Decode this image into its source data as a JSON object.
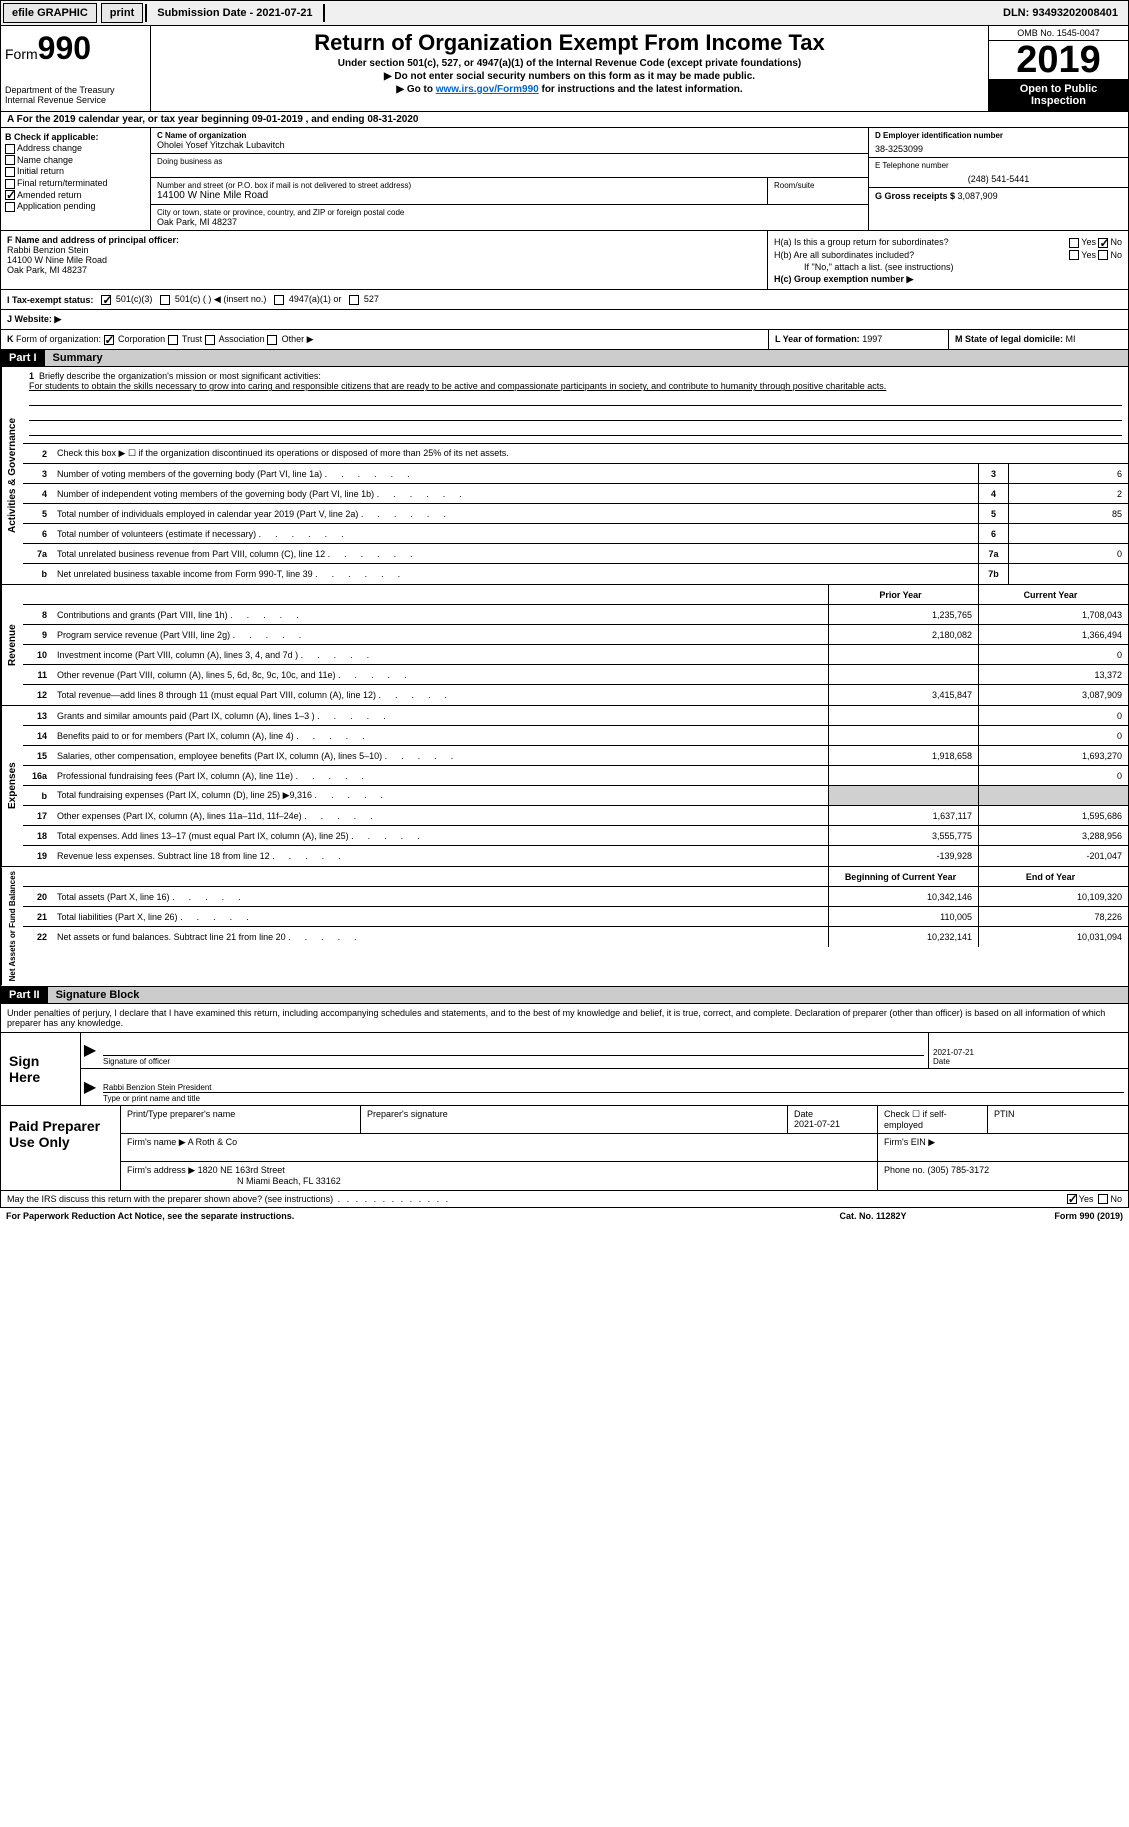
{
  "top_bar": {
    "efile": "efile GRAPHIC",
    "print": "print",
    "submission_label": "Submission Date - ",
    "submission_date": "2021-07-21",
    "dln_label": "DLN: ",
    "dln": "93493202008401"
  },
  "header": {
    "form_prefix": "Form",
    "form_num": "990",
    "dept": "Department of the Treasury\nInternal Revenue Service",
    "title": "Return of Organization Exempt From Income Tax",
    "sub1": "Under section 501(c), 527, or 4947(a)(1) of the Internal Revenue Code (except private foundations)",
    "sub2": "▶ Do not enter social security numbers on this form as it may be made public.",
    "sub3_pre": "▶ Go to ",
    "sub3_link": "www.irs.gov/Form990",
    "sub3_post": " for instructions and the latest information.",
    "omb": "OMB No. 1545-0047",
    "year": "2019",
    "open": "Open to Public Inspection"
  },
  "line_a": "A For the 2019 calendar year, or tax year beginning 09-01-2019   , and ending 08-31-2020",
  "box_b": {
    "label": "B Check if applicable:",
    "opts": [
      "Address change",
      "Name change",
      "Initial return",
      "Final return/terminated",
      "Amended return",
      "Application pending"
    ],
    "checked_idx": 4
  },
  "box_c": {
    "name_label": "C Name of organization",
    "name": "Oholei Yosef Yitzchak Lubavitch",
    "dba_label": "Doing business as",
    "street_label": "Number and street (or P.O. box if mail is not delivered to street address)",
    "room_label": "Room/suite",
    "street": "14100 W Nine Mile Road",
    "city_label": "City or town, state or province, country, and ZIP or foreign postal code",
    "city": "Oak Park, MI  48237"
  },
  "box_d": {
    "label": "D Employer identification number",
    "value": "38-3253099"
  },
  "box_e": {
    "label": "E Telephone number",
    "value": "(248) 541-5441"
  },
  "box_g": {
    "label": "G Gross receipts $ ",
    "value": "3,087,909"
  },
  "box_f": {
    "label": "F  Name and address of principal officer:",
    "name": "Rabbi Benzion Stein",
    "street": "14100 W Nine Mile Road",
    "city": "Oak Park, MI  48237"
  },
  "box_h": {
    "ha": "H(a)  Is this a group return for subordinates?",
    "hb": "H(b)  Are all subordinates included?",
    "hb_note": "If \"No,\" attach a list. (see instructions)",
    "hc": "H(c)  Group exemption number ▶",
    "yes": "Yes",
    "no": "No"
  },
  "exempt": {
    "label": "I  Tax-exempt status:",
    "o1": "501(c)(3)",
    "o2": "501(c) (  ) ◀ (insert no.)",
    "o3": "4947(a)(1) or",
    "o4": "527"
  },
  "website": "J  Website: ▶",
  "box_k": "K Form of organization:   Corporation   Trust   Association   Other ▶",
  "box_l": {
    "label": "L Year of formation: ",
    "value": "1997"
  },
  "box_m": {
    "label": "M State of legal domicile: ",
    "value": "MI"
  },
  "part1": {
    "hdr": "Part I",
    "title": "Summary"
  },
  "mission": {
    "num": "1",
    "label": "Briefly describe the organization's mission or most significant activities:",
    "text": "For students to obtain the skills necessary to grow into caring and responsible citizens that are ready to be active and compassionate participants in society, and contribute to humanity through positive charitable acts."
  },
  "gov_lines": [
    {
      "num": "2",
      "txt": "Check this box ▶ ☐  if the organization discontinued its operations or disposed of more than 25% of its net assets.",
      "box": "",
      "val": ""
    },
    {
      "num": "3",
      "txt": "Number of voting members of the governing body (Part VI, line 1a)",
      "box": "3",
      "val": "6"
    },
    {
      "num": "4",
      "txt": "Number of independent voting members of the governing body (Part VI, line 1b)",
      "box": "4",
      "val": "2"
    },
    {
      "num": "5",
      "txt": "Total number of individuals employed in calendar year 2019 (Part V, line 2a)",
      "box": "5",
      "val": "85"
    },
    {
      "num": "6",
      "txt": "Total number of volunteers (estimate if necessary)",
      "box": "6",
      "val": ""
    },
    {
      "num": "7a",
      "txt": "Total unrelated business revenue from Part VIII, column (C), line 12",
      "box": "7a",
      "val": "0"
    },
    {
      "num": "b",
      "txt": "Net unrelated business taxable income from Form 990-T, line 39",
      "box": "7b",
      "val": ""
    }
  ],
  "rev_hdr": {
    "prior": "Prior Year",
    "curr": "Current Year"
  },
  "rev_lines": [
    {
      "num": "8",
      "txt": "Contributions and grants (Part VIII, line 1h)",
      "prior": "1,235,765",
      "curr": "1,708,043"
    },
    {
      "num": "9",
      "txt": "Program service revenue (Part VIII, line 2g)",
      "prior": "2,180,082",
      "curr": "1,366,494"
    },
    {
      "num": "10",
      "txt": "Investment income (Part VIII, column (A), lines 3, 4, and 7d )",
      "prior": "",
      "curr": "0"
    },
    {
      "num": "11",
      "txt": "Other revenue (Part VIII, column (A), lines 5, 6d, 8c, 9c, 10c, and 11e)",
      "prior": "",
      "curr": "13,372"
    },
    {
      "num": "12",
      "txt": "Total revenue—add lines 8 through 11 (must equal Part VIII, column (A), line 12)",
      "prior": "3,415,847",
      "curr": "3,087,909"
    }
  ],
  "exp_lines": [
    {
      "num": "13",
      "txt": "Grants and similar amounts paid (Part IX, column (A), lines 1–3 )",
      "prior": "",
      "curr": "0"
    },
    {
      "num": "14",
      "txt": "Benefits paid to or for members (Part IX, column (A), line 4)",
      "prior": "",
      "curr": "0"
    },
    {
      "num": "15",
      "txt": "Salaries, other compensation, employee benefits (Part IX, column (A), lines 5–10)",
      "prior": "1,918,658",
      "curr": "1,693,270"
    },
    {
      "num": "16a",
      "txt": "Professional fundraising fees (Part IX, column (A), line 11e)",
      "prior": "",
      "curr": "0"
    },
    {
      "num": "b",
      "txt": "Total fundraising expenses (Part IX, column (D), line 25) ▶9,316",
      "prior": "SHADED",
      "curr": "SHADED"
    },
    {
      "num": "17",
      "txt": "Other expenses (Part IX, column (A), lines 11a–11d, 11f–24e)",
      "prior": "1,637,117",
      "curr": "1,595,686"
    },
    {
      "num": "18",
      "txt": "Total expenses. Add lines 13–17 (must equal Part IX, column (A), line 25)",
      "prior": "3,555,775",
      "curr": "3,288,956"
    },
    {
      "num": "19",
      "txt": "Revenue less expenses. Subtract line 18 from line 12",
      "prior": "-139,928",
      "curr": "-201,047"
    }
  ],
  "na_hdr": {
    "prior": "Beginning of Current Year",
    "curr": "End of Year"
  },
  "na_lines": [
    {
      "num": "20",
      "txt": "Total assets (Part X, line 16)",
      "prior": "10,342,146",
      "curr": "10,109,320"
    },
    {
      "num": "21",
      "txt": "Total liabilities (Part X, line 26)",
      "prior": "110,005",
      "curr": "78,226"
    },
    {
      "num": "22",
      "txt": "Net assets or fund balances. Subtract line 21 from line 20",
      "prior": "10,232,141",
      "curr": "10,031,094"
    }
  ],
  "vert": {
    "gov": "Activities & Governance",
    "rev": "Revenue",
    "exp": "Expenses",
    "na": "Net Assets or Fund Balances"
  },
  "part2": {
    "hdr": "Part II",
    "title": "Signature Block"
  },
  "penalty": "Under penalties of perjury, I declare that I have examined this return, including accompanying schedules and statements, and to the best of my knowledge and belief, it is true, correct, and complete. Declaration of preparer (other than officer) is based on all information of which preparer has any knowledge.",
  "sign": {
    "label": "Sign Here",
    "sig_label": "Signature of officer",
    "date_label": "Date",
    "date": "2021-07-21",
    "name": "Rabbi Benzion Stein  President",
    "name_label": "Type or print name and title"
  },
  "prep": {
    "label": "Paid Preparer Use Only",
    "r1": {
      "c1": "Print/Type preparer's name",
      "c2": "Preparer's signature",
      "c3_l": "Date",
      "c3_v": "2021-07-21",
      "c4": "Check ☐ if self-employed",
      "c5": "PTIN"
    },
    "r2": {
      "c1_l": "Firm's name    ▶ ",
      "c1_v": "A Roth & Co",
      "c2": "Firm's EIN ▶"
    },
    "r3": {
      "c1_l": "Firm's address ▶ ",
      "c1_v": "1820 NE 163rd Street",
      "c1_v2": "N Miami Beach, FL  33162",
      "c2_l": "Phone no. ",
      "c2_v": "(305) 785-3172"
    }
  },
  "discuss": {
    "txt": "May the IRS discuss this return with the preparer shown above? (see instructions)",
    "yes": "Yes",
    "no": "No"
  },
  "foot": {
    "l": "For Paperwork Reduction Act Notice, see the separate instructions.",
    "m": "Cat. No. 11282Y",
    "r": "Form 990 (2019)"
  }
}
